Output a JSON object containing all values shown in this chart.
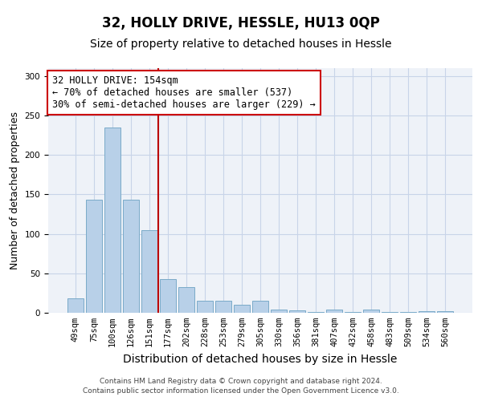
{
  "title1": "32, HOLLY DRIVE, HESSLE, HU13 0QP",
  "title2": "Size of property relative to detached houses in Hessle",
  "xlabel": "Distribution of detached houses by size in Hessle",
  "ylabel": "Number of detached properties",
  "categories": [
    "49sqm",
    "75sqm",
    "100sqm",
    "126sqm",
    "151sqm",
    "177sqm",
    "202sqm",
    "228sqm",
    "253sqm",
    "279sqm",
    "305sqm",
    "330sqm",
    "356sqm",
    "381sqm",
    "407sqm",
    "432sqm",
    "458sqm",
    "483sqm",
    "509sqm",
    "534sqm",
    "560sqm"
  ],
  "values": [
    18,
    143,
    235,
    143,
    105,
    43,
    33,
    15,
    15,
    10,
    15,
    4,
    3,
    1,
    4,
    1,
    4,
    1,
    1,
    2,
    2
  ],
  "bar_color": "#b8d0e8",
  "bar_edge_color": "#7aaac8",
  "bar_width": 0.85,
  "vline_x": 4.5,
  "vline_color": "#bb0000",
  "annotation_line1": "32 HOLLY DRIVE: 154sqm",
  "annotation_line2": "← 70% of detached houses are smaller (537)",
  "annotation_line3": "30% of semi-detached houses are larger (229) →",
  "annotation_box_color": "#ffffff",
  "annotation_box_edge": "#cc0000",
  "ylim": [
    0,
    310
  ],
  "yticks": [
    0,
    50,
    100,
    150,
    200,
    250,
    300
  ],
  "grid_color": "#c8d4e8",
  "bg_color": "#eef2f8",
  "footer": "Contains HM Land Registry data © Crown copyright and database right 2024.\nContains public sector information licensed under the Open Government Licence v3.0.",
  "title1_fontsize": 12,
  "title2_fontsize": 10,
  "xlabel_fontsize": 10,
  "ylabel_fontsize": 9,
  "tick_fontsize": 7.5,
  "annotation_fontsize": 8.5,
  "footer_fontsize": 6.5
}
